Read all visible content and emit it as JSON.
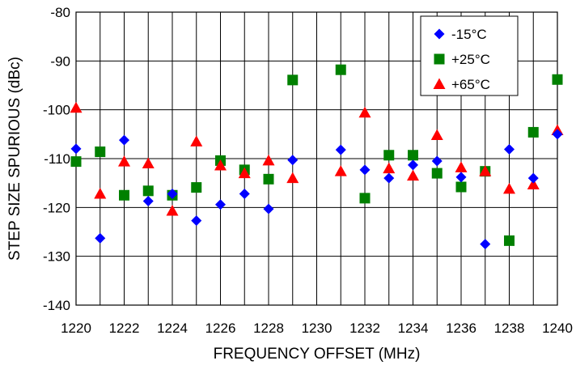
{
  "chart_data": {
    "type": "scatter",
    "title": "",
    "xlabel": "FREQUENCY OFFSET (MHz)",
    "ylabel": "STEP SIZE SPURIOUS (dBc)",
    "xlim": [
      1220,
      1240
    ],
    "ylim": [
      -140,
      -80
    ],
    "x_ticks": [
      1220,
      1222,
      1224,
      1226,
      1228,
      1230,
      1232,
      1234,
      1236,
      1238,
      1240
    ],
    "y_ticks": [
      -80,
      -90,
      -100,
      -110,
      -120,
      -130,
      -140
    ],
    "x_grid_step": 1,
    "grid": true,
    "legend_position": "top-right",
    "series": [
      {
        "name": "-15°C",
        "marker": "diamond",
        "color": "#0000ff",
        "points": [
          [
            1220,
            -108
          ],
          [
            1221,
            -126.3
          ],
          [
            1222,
            -106.2
          ],
          [
            1223,
            -118.7
          ],
          [
            1224,
            -117.2
          ],
          [
            1225,
            -122.7
          ],
          [
            1226,
            -119.4
          ],
          [
            1227,
            -117.2
          ],
          [
            1228,
            -120.3
          ],
          [
            1229,
            -110.3
          ],
          [
            1231,
            -108.2
          ],
          [
            1232,
            -112.3
          ],
          [
            1233,
            -114
          ],
          [
            1234,
            -111.3
          ],
          [
            1235,
            -110.5
          ],
          [
            1236,
            -113.8
          ],
          [
            1237,
            -127.5
          ],
          [
            1238,
            -108.1
          ],
          [
            1239,
            -114
          ],
          [
            1240,
            -105
          ]
        ]
      },
      {
        "name": "+25°C",
        "marker": "square",
        "color": "#008000",
        "points": [
          [
            1220,
            -110.6
          ],
          [
            1221,
            -108.6
          ],
          [
            1222,
            -117.5
          ],
          [
            1223,
            -116.6
          ],
          [
            1224,
            -117.5
          ],
          [
            1225,
            -115.9
          ],
          [
            1226,
            -110.4
          ],
          [
            1227,
            -112.3
          ],
          [
            1228,
            -114.2
          ],
          [
            1229,
            -93.9
          ],
          [
            1231,
            -91.8
          ],
          [
            1232,
            -118.1
          ],
          [
            1233,
            -109.3
          ],
          [
            1234,
            -109.3
          ],
          [
            1235,
            -113
          ],
          [
            1236,
            -115.8
          ],
          [
            1237,
            -112.6
          ],
          [
            1238,
            -126.8
          ],
          [
            1239,
            -104.6
          ],
          [
            1240,
            -93.8
          ]
        ]
      },
      {
        "name": "+65°C",
        "marker": "triangle",
        "color": "#ff0000",
        "points": [
          [
            1220,
            -99.6
          ],
          [
            1221,
            -117.2
          ],
          [
            1222,
            -110.6
          ],
          [
            1223,
            -111
          ],
          [
            1224,
            -120.7
          ],
          [
            1225,
            -106.5
          ],
          [
            1226,
            -111.4
          ],
          [
            1227,
            -113
          ],
          [
            1228,
            -110.4
          ],
          [
            1229,
            -114
          ],
          [
            1231,
            -112.6
          ],
          [
            1232,
            -100.6
          ],
          [
            1233,
            -112
          ],
          [
            1234,
            -113.5
          ],
          [
            1235,
            -105.2
          ],
          [
            1236,
            -111.8
          ],
          [
            1237,
            -112.6
          ],
          [
            1238,
            -116.2
          ],
          [
            1239,
            -115.3
          ],
          [
            1240,
            -104.2
          ]
        ]
      }
    ]
  }
}
